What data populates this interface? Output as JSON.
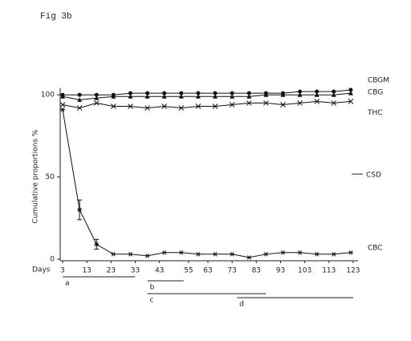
{
  "chart_data": {
    "type": "line",
    "title": "Fig 3b",
    "y_label": "Cumulative proportions %",
    "x_label": "Days",
    "x": [
      3,
      10,
      17,
      24,
      31,
      38,
      45,
      52,
      59,
      66,
      73,
      80,
      87,
      94,
      101,
      108,
      115,
      122
    ],
    "series": [
      {
        "name": "CBGM",
        "color": "#111111",
        "marker": "circle",
        "values": [
          100,
          100,
          100,
          100,
          101,
          101,
          101,
          101,
          101,
          101,
          101,
          101,
          101,
          101,
          102,
          102,
          102,
          103
        ]
      },
      {
        "name": "CBG",
        "color": "#111111",
        "marker": "triangle",
        "values": [
          99,
          97,
          98,
          99,
          99,
          99,
          99,
          99,
          99,
          99,
          99,
          99,
          100,
          100,
          100,
          100,
          100,
          101
        ]
      },
      {
        "name": "THC",
        "color": "#111111",
        "marker": "cross",
        "values": [
          94,
          92,
          95,
          93,
          93,
          92,
          93,
          92,
          93,
          93,
          94,
          95,
          95,
          94,
          95,
          96,
          95,
          96
        ]
      },
      {
        "name": "CBC",
        "color": "#111111",
        "marker": "star",
        "values": [
          91,
          30,
          9,
          3,
          3,
          2,
          4,
          4,
          3,
          3,
          3,
          1,
          3,
          4,
          4,
          3,
          3,
          4
        ],
        "errors": [
          null,
          6,
          3,
          null,
          null,
          null,
          null,
          null,
          null,
          null,
          null,
          null,
          null,
          null,
          null,
          null,
          null,
          null
        ]
      }
    ],
    "legend_key": "CSD",
    "xlim": [
      2,
      125
    ],
    "xticks": [
      3,
      13,
      23,
      33,
      43,
      55,
      63,
      73,
      83,
      93,
      103,
      113,
      123
    ],
    "ylim": [
      -1,
      104
    ],
    "yticks": [
      0,
      50,
      100
    ],
    "periods": [
      {
        "label": "a",
        "start": 3,
        "end": 33
      },
      {
        "label": "b",
        "start": 38,
        "end": 53
      },
      {
        "label": "c",
        "start": 38,
        "end": 87
      },
      {
        "label": "d",
        "start": 75,
        "end": 123
      }
    ]
  }
}
